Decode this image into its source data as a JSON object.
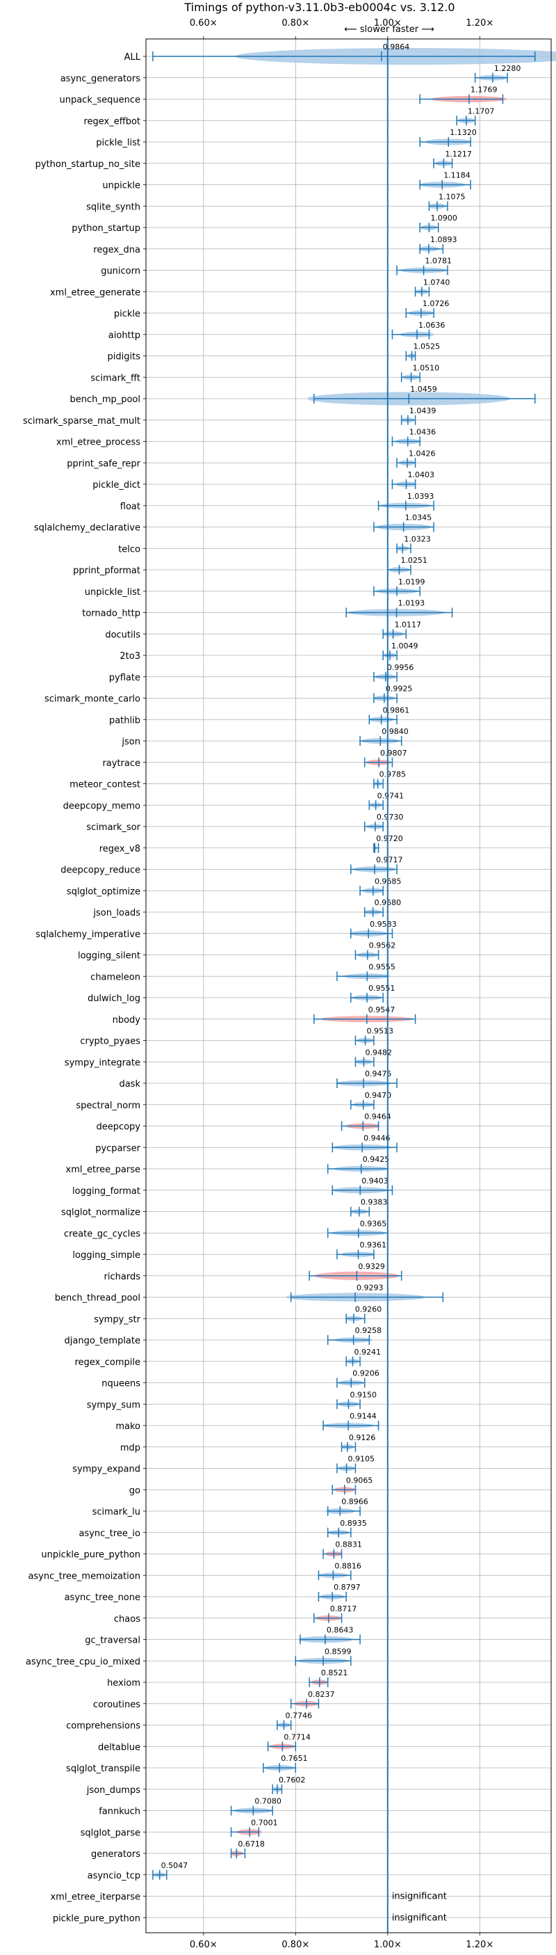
{
  "chart_data": {
    "type": "violin",
    "title": "Timings of python-v3.11.0b3-eb0004c vs. 3.12.0",
    "subtitle": "⟵ slower   faster ⟶",
    "xlim": [
      0.475,
      1.355
    ],
    "x_ticks": [
      0.6,
      0.8,
      1.0,
      1.2
    ],
    "x_tick_labels": [
      "0.60×",
      "0.80×",
      "1.00×",
      "1.20×"
    ],
    "reference_line": 1.0,
    "grid": true,
    "colors": {
      "faster": "#a9c9e6",
      "slower": "#f4a3a6",
      "accent": "#1f77b4"
    },
    "insignificant_label": "insignificant",
    "benchmarks": [
      {
        "name": "ALL",
        "value": 0.9864,
        "min": 0.49,
        "max": 1.32,
        "width": 0.45,
        "color": "faster",
        "is_all": true
      },
      {
        "name": "async_generators",
        "value": 1.228,
        "min": 1.19,
        "max": 1.26,
        "width": 0.045,
        "color": "faster"
      },
      {
        "name": "unpack_sequence",
        "value": 1.1769,
        "min": 1.07,
        "max": 1.25,
        "width": 0.07,
        "color": "slower"
      },
      {
        "name": "regex_effbot",
        "value": 1.1707,
        "min": 1.15,
        "max": 1.19,
        "width": 0.04,
        "color": "faster"
      },
      {
        "name": "pickle_list",
        "value": 1.132,
        "min": 1.07,
        "max": 1.18,
        "width": 0.07,
        "color": "faster"
      },
      {
        "name": "python_startup_no_site",
        "value": 1.1217,
        "min": 1.1,
        "max": 1.14,
        "width": 0.04,
        "color": "faster"
      },
      {
        "name": "unpickle",
        "value": 1.1184,
        "min": 1.07,
        "max": 1.18,
        "width": 0.06,
        "color": "faster"
      },
      {
        "name": "sqlite_synth",
        "value": 1.1075,
        "min": 1.09,
        "max": 1.13,
        "width": 0.04,
        "color": "faster"
      },
      {
        "name": "python_startup",
        "value": 1.09,
        "min": 1.07,
        "max": 1.11,
        "width": 0.04,
        "color": "faster"
      },
      {
        "name": "regex_dna",
        "value": 1.0893,
        "min": 1.07,
        "max": 1.12,
        "width": 0.04,
        "color": "faster"
      },
      {
        "name": "gunicorn",
        "value": 1.0781,
        "min": 1.02,
        "max": 1.13,
        "width": 0.05,
        "color": "faster"
      },
      {
        "name": "xml_etree_generate",
        "value": 1.074,
        "min": 1.06,
        "max": 1.09,
        "width": 0.03,
        "color": "faster"
      },
      {
        "name": "pickle",
        "value": 1.0726,
        "min": 1.04,
        "max": 1.1,
        "width": 0.05,
        "color": "faster"
      },
      {
        "name": "aiohttp",
        "value": 1.0636,
        "min": 1.01,
        "max": 1.09,
        "width": 0.05,
        "color": "faster"
      },
      {
        "name": "pidigits",
        "value": 1.0525,
        "min": 1.04,
        "max": 1.06,
        "width": 0.02,
        "color": "faster"
      },
      {
        "name": "scimark_fft",
        "value": 1.051,
        "min": 1.03,
        "max": 1.07,
        "width": 0.04,
        "color": "faster"
      },
      {
        "name": "bench_mp_pool",
        "value": 1.0459,
        "min": 0.84,
        "max": 1.32,
        "width": 0.3,
        "color": "faster"
      },
      {
        "name": "scimark_sparse_mat_mult",
        "value": 1.0439,
        "min": 1.03,
        "max": 1.06,
        "width": 0.03,
        "color": "faster"
      },
      {
        "name": "xml_etree_process",
        "value": 1.0436,
        "min": 1.01,
        "max": 1.07,
        "width": 0.04,
        "color": "faster"
      },
      {
        "name": "pprint_safe_repr",
        "value": 1.0426,
        "min": 1.02,
        "max": 1.06,
        "width": 0.04,
        "color": "faster"
      },
      {
        "name": "pickle_dict",
        "value": 1.0403,
        "min": 1.01,
        "max": 1.06,
        "width": 0.04,
        "color": "faster"
      },
      {
        "name": "float",
        "value": 1.0393,
        "min": 0.98,
        "max": 1.1,
        "width": 0.05,
        "color": "faster"
      },
      {
        "name": "sqlalchemy_declarative",
        "value": 1.0345,
        "min": 0.97,
        "max": 1.1,
        "width": 0.08,
        "color": "faster"
      },
      {
        "name": "telco",
        "value": 1.0323,
        "min": 1.02,
        "max": 1.05,
        "width": 0.03,
        "color": "faster"
      },
      {
        "name": "pprint_pformat",
        "value": 1.0251,
        "min": 1.0,
        "max": 1.05,
        "width": 0.04,
        "color": "faster"
      },
      {
        "name": "unpickle_list",
        "value": 1.0199,
        "min": 0.97,
        "max": 1.07,
        "width": 0.05,
        "color": "faster"
      },
      {
        "name": "tornado_http",
        "value": 1.0193,
        "min": 0.91,
        "max": 1.14,
        "width": 0.1,
        "color": "faster"
      },
      {
        "name": "docutils",
        "value": 1.0117,
        "min": 0.99,
        "max": 1.04,
        "width": 0.04,
        "color": "faster"
      },
      {
        "name": "2to3",
        "value": 1.0049,
        "min": 0.99,
        "max": 1.02,
        "width": 0.03,
        "color": "faster"
      },
      {
        "name": "pyflate",
        "value": 0.9956,
        "min": 0.97,
        "max": 1.02,
        "width": 0.04,
        "color": "faster"
      },
      {
        "name": "scimark_monte_carlo",
        "value": 0.9925,
        "min": 0.97,
        "max": 1.02,
        "width": 0.04,
        "color": "faster"
      },
      {
        "name": "pathlib",
        "value": 0.9861,
        "min": 0.96,
        "max": 1.02,
        "width": 0.04,
        "color": "faster"
      },
      {
        "name": "json",
        "value": 0.984,
        "min": 0.94,
        "max": 1.03,
        "width": 0.05,
        "color": "faster"
      },
      {
        "name": "raytrace",
        "value": 0.9807,
        "min": 0.95,
        "max": 1.01,
        "width": 0.04,
        "color": "slower"
      },
      {
        "name": "meteor_contest",
        "value": 0.9785,
        "min": 0.97,
        "max": 0.99,
        "width": 0.02,
        "color": "faster"
      },
      {
        "name": "deepcopy_memo",
        "value": 0.9741,
        "min": 0.96,
        "max": 0.99,
        "width": 0.03,
        "color": "faster"
      },
      {
        "name": "scimark_sor",
        "value": 0.973,
        "min": 0.95,
        "max": 0.99,
        "width": 0.03,
        "color": "faster"
      },
      {
        "name": "regex_v8",
        "value": 0.972,
        "min": 0.97,
        "max": 0.98,
        "width": 0.01,
        "color": "faster"
      },
      {
        "name": "deepcopy_reduce",
        "value": 0.9717,
        "min": 0.92,
        "max": 1.02,
        "width": 0.06,
        "color": "faster"
      },
      {
        "name": "sqlglot_optimize",
        "value": 0.9685,
        "min": 0.94,
        "max": 0.99,
        "width": 0.04,
        "color": "faster"
      },
      {
        "name": "json_loads",
        "value": 0.968,
        "min": 0.95,
        "max": 0.99,
        "width": 0.03,
        "color": "faster"
      },
      {
        "name": "sqlalchemy_imperative",
        "value": 0.9583,
        "min": 0.92,
        "max": 1.01,
        "width": 0.06,
        "color": "faster"
      },
      {
        "name": "logging_silent",
        "value": 0.9562,
        "min": 0.93,
        "max": 0.98,
        "width": 0.03,
        "color": "faster"
      },
      {
        "name": "chameleon",
        "value": 0.9555,
        "min": 0.89,
        "max": 1.0,
        "width": 0.05,
        "color": "faster"
      },
      {
        "name": "dulwich_log",
        "value": 0.9551,
        "min": 0.92,
        "max": 0.99,
        "width": 0.04,
        "color": "faster"
      },
      {
        "name": "nbody",
        "value": 0.9547,
        "min": 0.84,
        "max": 1.06,
        "width": 0.07,
        "color": "slower"
      },
      {
        "name": "crypto_pyaes",
        "value": 0.9513,
        "min": 0.93,
        "max": 0.97,
        "width": 0.03,
        "color": "faster"
      },
      {
        "name": "sympy_integrate",
        "value": 0.9482,
        "min": 0.93,
        "max": 0.97,
        "width": 0.03,
        "color": "faster"
      },
      {
        "name": "dask",
        "value": 0.9475,
        "min": 0.89,
        "max": 1.02,
        "width": 0.06,
        "color": "faster"
      },
      {
        "name": "spectral_norm",
        "value": 0.947,
        "min": 0.92,
        "max": 0.97,
        "width": 0.03,
        "color": "faster"
      },
      {
        "name": "deepcopy",
        "value": 0.9464,
        "min": 0.9,
        "max": 0.98,
        "width": 0.05,
        "color": "slower"
      },
      {
        "name": "pycparser",
        "value": 0.9446,
        "min": 0.88,
        "max": 1.02,
        "width": 0.06,
        "color": "faster"
      },
      {
        "name": "xml_etree_parse",
        "value": 0.9425,
        "min": 0.87,
        "max": 1.0,
        "width": 0.05,
        "color": "faster"
      },
      {
        "name": "logging_format",
        "value": 0.9403,
        "min": 0.88,
        "max": 1.01,
        "width": 0.07,
        "color": "faster"
      },
      {
        "name": "sqlglot_normalize",
        "value": 0.9383,
        "min": 0.92,
        "max": 0.96,
        "width": 0.03,
        "color": "faster"
      },
      {
        "name": "create_gc_cycles",
        "value": 0.9365,
        "min": 0.87,
        "max": 1.0,
        "width": 0.05,
        "color": "faster"
      },
      {
        "name": "logging_simple",
        "value": 0.9361,
        "min": 0.89,
        "max": 0.97,
        "width": 0.04,
        "color": "faster"
      },
      {
        "name": "richards",
        "value": 0.9329,
        "min": 0.83,
        "max": 1.03,
        "width": 0.14,
        "color": "slower"
      },
      {
        "name": "bench_thread_pool",
        "value": 0.9293,
        "min": 0.79,
        "max": 1.12,
        "width": 0.14,
        "color": "faster"
      },
      {
        "name": "sympy_str",
        "value": 0.926,
        "min": 0.91,
        "max": 0.95,
        "width": 0.03,
        "color": "faster"
      },
      {
        "name": "django_template",
        "value": 0.9258,
        "min": 0.87,
        "max": 0.96,
        "width": 0.04,
        "color": "faster"
      },
      {
        "name": "regex_compile",
        "value": 0.9241,
        "min": 0.91,
        "max": 0.94,
        "width": 0.03,
        "color": "faster"
      },
      {
        "name": "nqueens",
        "value": 0.9206,
        "min": 0.89,
        "max": 0.95,
        "width": 0.04,
        "color": "faster"
      },
      {
        "name": "sympy_sum",
        "value": 0.915,
        "min": 0.89,
        "max": 0.94,
        "width": 0.04,
        "color": "faster"
      },
      {
        "name": "mako",
        "value": 0.9144,
        "min": 0.86,
        "max": 0.98,
        "width": 0.04,
        "color": "faster"
      },
      {
        "name": "mdp",
        "value": 0.9126,
        "min": 0.9,
        "max": 0.93,
        "width": 0.03,
        "color": "faster"
      },
      {
        "name": "sympy_expand",
        "value": 0.9105,
        "min": 0.89,
        "max": 0.93,
        "width": 0.03,
        "color": "faster"
      },
      {
        "name": "go",
        "value": 0.9065,
        "min": 0.88,
        "max": 0.93,
        "width": 0.04,
        "color": "slower"
      },
      {
        "name": "scimark_lu",
        "value": 0.8966,
        "min": 0.87,
        "max": 0.94,
        "width": 0.05,
        "color": "faster"
      },
      {
        "name": "async_tree_io",
        "value": 0.8935,
        "min": 0.87,
        "max": 0.92,
        "width": 0.03,
        "color": "faster"
      },
      {
        "name": "unpickle_pure_python",
        "value": 0.8831,
        "min": 0.86,
        "max": 0.9,
        "width": 0.03,
        "color": "slower"
      },
      {
        "name": "async_tree_memoization",
        "value": 0.8816,
        "min": 0.85,
        "max": 0.92,
        "width": 0.04,
        "color": "faster"
      },
      {
        "name": "async_tree_none",
        "value": 0.8797,
        "min": 0.85,
        "max": 0.91,
        "width": 0.04,
        "color": "faster"
      },
      {
        "name": "chaos",
        "value": 0.8717,
        "min": 0.84,
        "max": 0.9,
        "width": 0.04,
        "color": "slower"
      },
      {
        "name": "gc_traversal",
        "value": 0.8643,
        "min": 0.81,
        "max": 0.94,
        "width": 0.08,
        "color": "faster"
      },
      {
        "name": "async_tree_cpu_io_mixed",
        "value": 0.8599,
        "min": 0.8,
        "max": 0.92,
        "width": 0.06,
        "color": "faster"
      },
      {
        "name": "hexiom",
        "value": 0.8521,
        "min": 0.83,
        "max": 0.87,
        "width": 0.03,
        "color": "slower"
      },
      {
        "name": "coroutines",
        "value": 0.8237,
        "min": 0.79,
        "max": 0.85,
        "width": 0.04,
        "color": "slower"
      },
      {
        "name": "comprehensions",
        "value": 0.7746,
        "min": 0.76,
        "max": 0.79,
        "width": 0.03,
        "color": "faster"
      },
      {
        "name": "deltablue",
        "value": 0.7714,
        "min": 0.74,
        "max": 0.8,
        "width": 0.04,
        "color": "slower"
      },
      {
        "name": "sqlglot_transpile",
        "value": 0.7651,
        "min": 0.73,
        "max": 0.8,
        "width": 0.05,
        "color": "faster"
      },
      {
        "name": "json_dumps",
        "value": 0.7602,
        "min": 0.75,
        "max": 0.77,
        "width": 0.03,
        "color": "faster"
      },
      {
        "name": "fannkuch",
        "value": 0.708,
        "min": 0.66,
        "max": 0.75,
        "width": 0.05,
        "color": "faster"
      },
      {
        "name": "sqlglot_parse",
        "value": 0.7001,
        "min": 0.66,
        "max": 0.72,
        "width": 0.05,
        "color": "slower"
      },
      {
        "name": "generators",
        "value": 0.6718,
        "min": 0.66,
        "max": 0.69,
        "width": 0.03,
        "color": "slower"
      },
      {
        "name": "asyncio_tcp",
        "value": 0.5047,
        "min": 0.49,
        "max": 0.52,
        "width": 0.02,
        "color": "faster"
      },
      {
        "name": "xml_etree_iterparse",
        "value": null,
        "insignificant": true
      },
      {
        "name": "pickle_pure_python",
        "value": null,
        "insignificant": true
      }
    ]
  }
}
